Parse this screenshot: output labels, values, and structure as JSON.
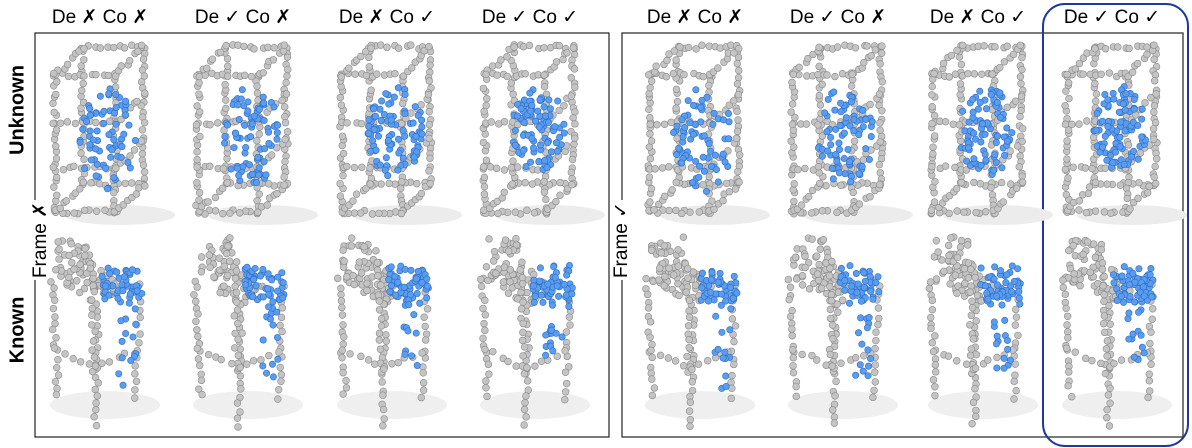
{
  "panels": [
    {
      "frame_label": "Frame ✗",
      "columns": [
        "De ✗ Co ✗",
        "De ✓ Co ✗",
        "De ✗ Co ✓",
        "De ✓ Co ✓"
      ]
    },
    {
      "frame_label": "Frame ✓",
      "columns": [
        "De ✗ Co ✗",
        "De ✓ Co ✗",
        "De ✗ Co ✓",
        "De ✓ Co ✓"
      ]
    }
  ],
  "rows": [
    "Unknown",
    "Known"
  ]
}
